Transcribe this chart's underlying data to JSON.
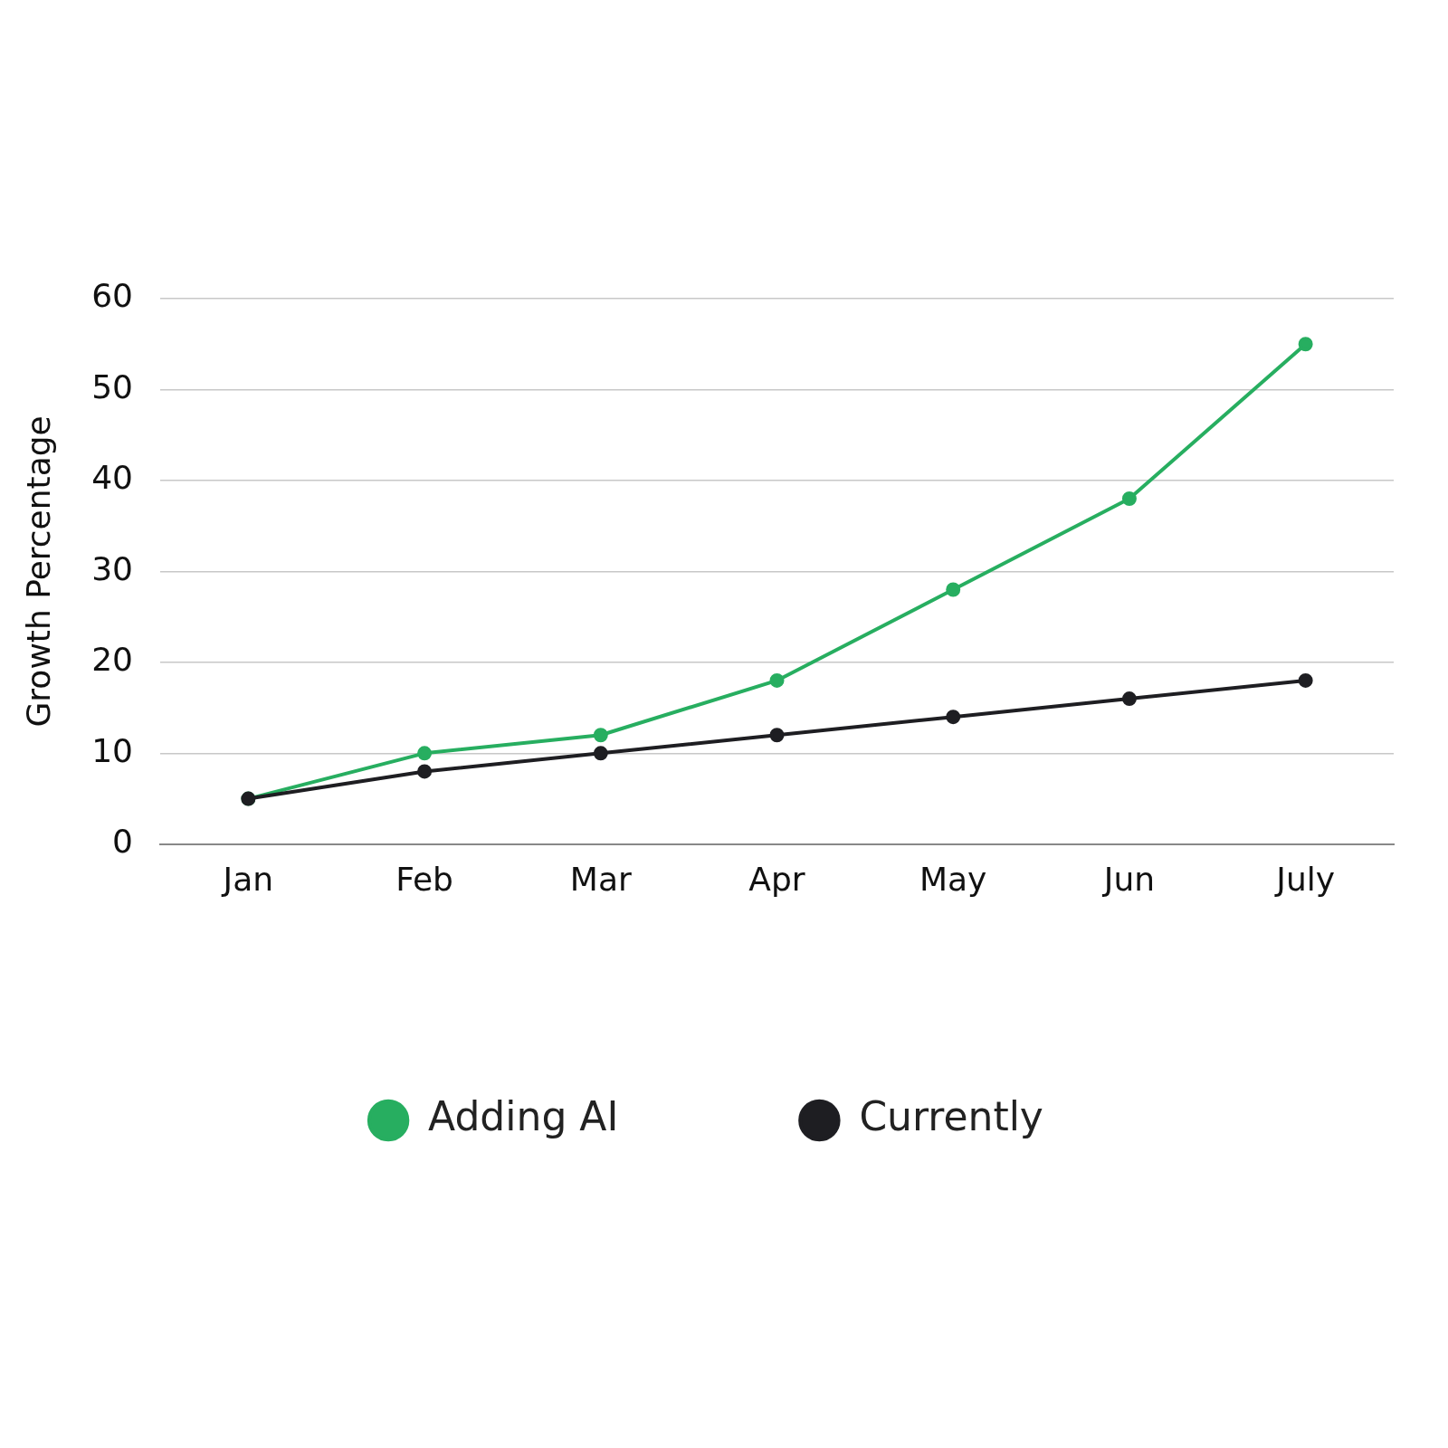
{
  "chart_data": {
    "type": "line",
    "ylabel": "Growth Percentage",
    "categories": [
      "Jan",
      "Feb",
      "Mar",
      "Apr",
      "May",
      "Jun",
      "July"
    ],
    "series": [
      {
        "name": "Adding AI",
        "color": "#27ae60",
        "values": [
          5,
          10,
          12,
          18,
          28,
          38,
          55
        ]
      },
      {
        "name": "Currently",
        "color": "#1e1e22",
        "values": [
          5,
          8,
          10,
          12,
          14,
          16,
          18
        ]
      }
    ],
    "ylim": [
      0,
      60
    ],
    "yticks": [
      0,
      10,
      20,
      30,
      40,
      50,
      60
    ],
    "grid": "y",
    "legend": "bottom",
    "marker": "circle",
    "line_style": "solid"
  }
}
